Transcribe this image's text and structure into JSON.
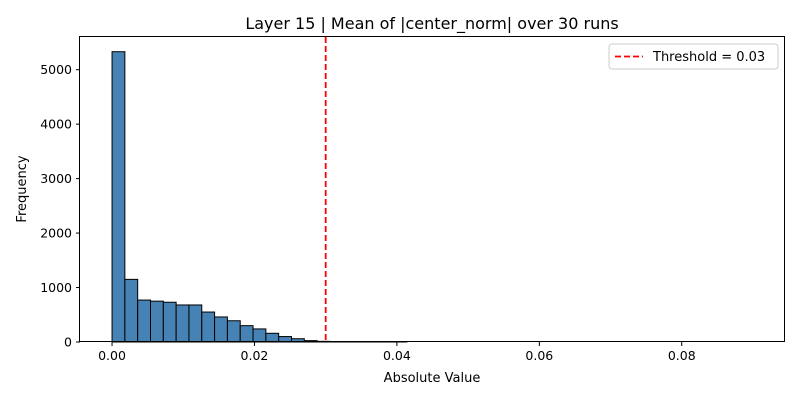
{
  "chart_data": {
    "type": "bar",
    "title": "Layer 15 | Mean of |center_norm| over 30 runs",
    "xlabel": "Absolute Value",
    "ylabel": "Frequency",
    "xlim": [
      -0.0045,
      0.0945
    ],
    "ylim": [
      0,
      5600
    ],
    "x_ticks": [
      0.0,
      0.02,
      0.04,
      0.06,
      0.08
    ],
    "x_tick_labels": [
      "0.00",
      "0.02",
      "0.04",
      "0.06",
      "0.08"
    ],
    "y_ticks": [
      0,
      1000,
      2000,
      3000,
      4000,
      5000
    ],
    "y_tick_labels": [
      "0",
      "1000",
      "2000",
      "3000",
      "4000",
      "5000"
    ],
    "bin_width": 0.0018,
    "bin_start": 0.0,
    "bins": 50,
    "values": [
      5330,
      1150,
      770,
      750,
      730,
      680,
      680,
      550,
      460,
      390,
      300,
      240,
      160,
      100,
      60,
      25,
      12,
      5,
      3,
      2,
      1,
      1,
      1,
      0,
      0,
      0,
      0,
      0,
      0,
      0,
      0,
      0,
      0,
      0,
      0,
      0,
      0,
      0,
      0,
      0,
      0,
      0,
      0,
      0,
      0,
      0,
      0,
      0,
      0,
      0
    ],
    "bar_color": "#4682b4",
    "bar_edge_color": "#000000",
    "threshold": {
      "value": 0.03,
      "label": "Threshold = 0.03",
      "color": "#ff0000",
      "style": "dashed"
    },
    "legend_position": "top-right",
    "grid": false
  }
}
